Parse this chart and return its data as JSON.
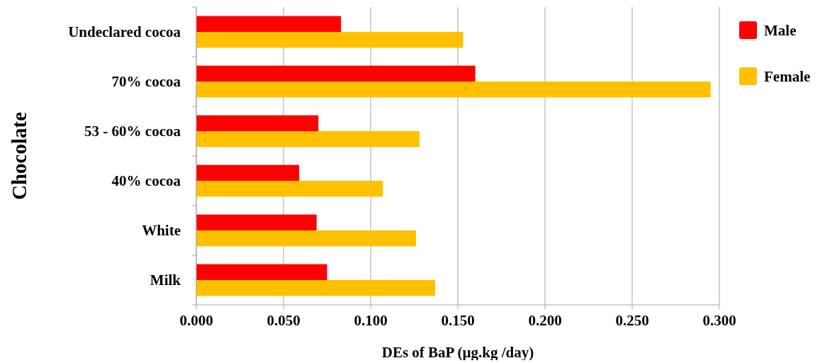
{
  "chart_data": {
    "type": "bar",
    "orientation": "horizontal",
    "xlabel": "DEs of BaP (µg.kg /day)",
    "ylabel": "Chocolate",
    "categories": [
      "Undeclared cocoa",
      "70% cocoa",
      "53 - 60% cocoa",
      "40% cocoa",
      "White",
      "Milk"
    ],
    "series": [
      {
        "name": "Male",
        "color": "#ff0000",
        "values": [
          0.083,
          0.16,
          0.07,
          0.059,
          0.069,
          0.075
        ]
      },
      {
        "name": "Female",
        "color": "#ffc000",
        "values": [
          0.153,
          0.295,
          0.128,
          0.107,
          0.126,
          0.137
        ]
      }
    ],
    "xlim": [
      0,
      0.3
    ],
    "xticks": [
      {
        "value": 0,
        "label": "0.000"
      },
      {
        "value": 0.05,
        "label": "0.050"
      },
      {
        "value": 0.1,
        "label": "0.100"
      },
      {
        "value": 0.15,
        "label": "0.150"
      },
      {
        "value": 0.2,
        "label": "0.200"
      },
      {
        "value": 0.25,
        "label": "0.250"
      },
      {
        "value": 0.3,
        "label": "0.300"
      }
    ],
    "grid": "x",
    "legend": "top right"
  }
}
